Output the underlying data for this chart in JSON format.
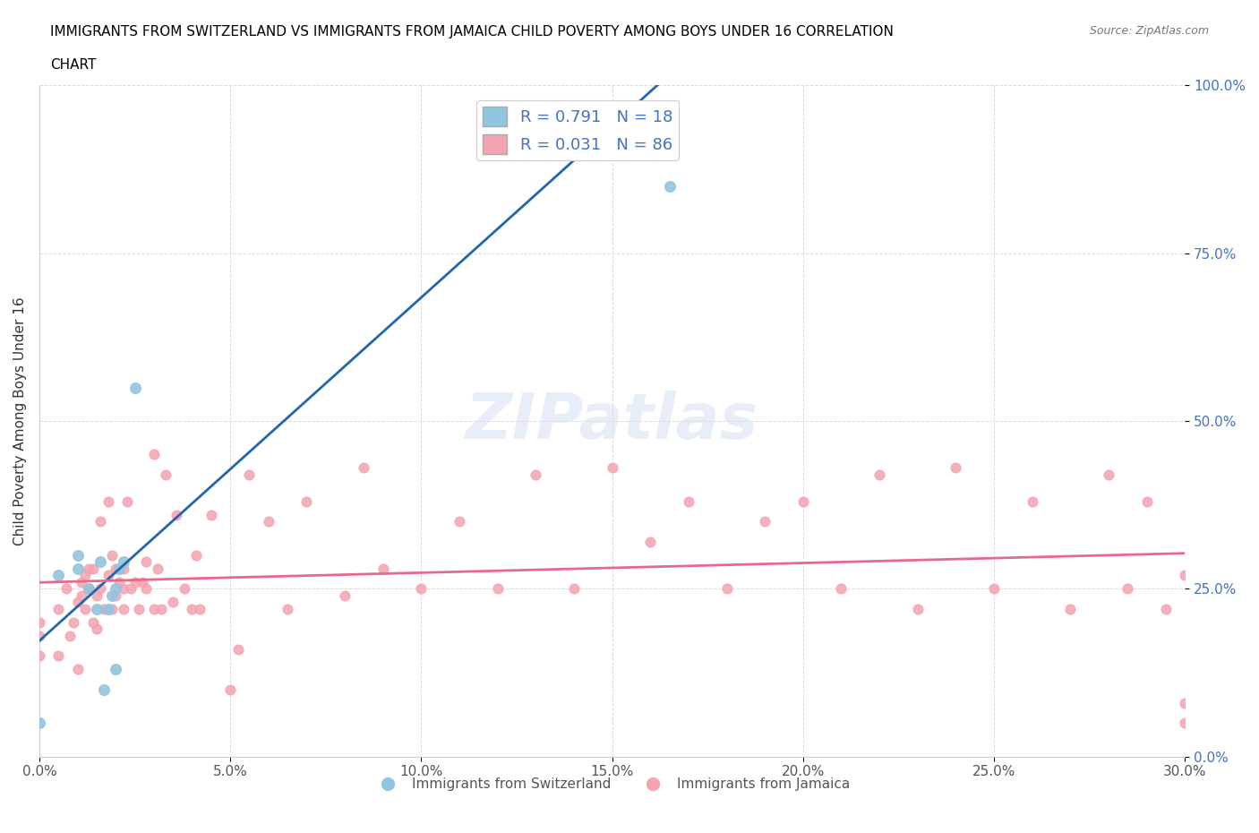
{
  "title_line1": "IMMIGRANTS FROM SWITZERLAND VS IMMIGRANTS FROM JAMAICA CHILD POVERTY AMONG BOYS UNDER 16 CORRELATION",
  "title_line2": "CHART",
  "source": "Source: ZipAtlas.com",
  "ylabel": "Child Poverty Among Boys Under 16",
  "xlabel_ticks": [
    "0.0%",
    "5.0%",
    "10.0%",
    "15.0%",
    "20.0%",
    "25.0%",
    "30.0%"
  ],
  "ylabel_ticks": [
    "0.0%",
    "25.0%",
    "50.0%",
    "75.0%",
    "100.0%"
  ],
  "xlim": [
    0.0,
    0.3
  ],
  "ylim": [
    0.0,
    1.0
  ],
  "R_switzerland": 0.791,
  "N_switzerland": 18,
  "R_jamaica": 0.031,
  "N_jamaica": 86,
  "color_switzerland": "#92c5de",
  "color_jamaica": "#f4a4b0",
  "line_color_switzerland": "#2166ac",
  "line_color_jamaica": "#e8688a",
  "watermark": "ZIPatlas",
  "switzerland_scatter_x": [
    0.0,
    0.005,
    0.01,
    0.01,
    0.013,
    0.015,
    0.016,
    0.017,
    0.018,
    0.019,
    0.02,
    0.02,
    0.021,
    0.022,
    0.025,
    0.12,
    0.15,
    0.165
  ],
  "switzerland_scatter_y": [
    0.05,
    0.27,
    0.28,
    0.3,
    0.25,
    0.22,
    0.29,
    0.1,
    0.22,
    0.24,
    0.13,
    0.25,
    0.28,
    0.29,
    0.55,
    0.97,
    0.97,
    0.85
  ],
  "jamaica_scatter_x": [
    0.0,
    0.0,
    0.0,
    0.005,
    0.005,
    0.007,
    0.008,
    0.009,
    0.01,
    0.01,
    0.011,
    0.011,
    0.012,
    0.012,
    0.013,
    0.013,
    0.014,
    0.014,
    0.015,
    0.015,
    0.016,
    0.016,
    0.017,
    0.018,
    0.018,
    0.019,
    0.019,
    0.02,
    0.02,
    0.021,
    0.022,
    0.022,
    0.022,
    0.023,
    0.024,
    0.025,
    0.026,
    0.027,
    0.028,
    0.028,
    0.03,
    0.03,
    0.031,
    0.032,
    0.033,
    0.035,
    0.036,
    0.038,
    0.04,
    0.041,
    0.042,
    0.045,
    0.05,
    0.052,
    0.055,
    0.06,
    0.065,
    0.07,
    0.08,
    0.085,
    0.09,
    0.1,
    0.11,
    0.12,
    0.13,
    0.14,
    0.15,
    0.16,
    0.17,
    0.18,
    0.19,
    0.2,
    0.21,
    0.22,
    0.23,
    0.24,
    0.25,
    0.26,
    0.27,
    0.28,
    0.285,
    0.29,
    0.295,
    0.3,
    0.3,
    0.3
  ],
  "jamaica_scatter_y": [
    0.15,
    0.18,
    0.2,
    0.15,
    0.22,
    0.25,
    0.18,
    0.2,
    0.13,
    0.23,
    0.24,
    0.26,
    0.22,
    0.27,
    0.25,
    0.28,
    0.2,
    0.28,
    0.19,
    0.24,
    0.25,
    0.35,
    0.22,
    0.27,
    0.38,
    0.22,
    0.3,
    0.24,
    0.28,
    0.26,
    0.22,
    0.25,
    0.28,
    0.38,
    0.25,
    0.26,
    0.22,
    0.26,
    0.25,
    0.29,
    0.22,
    0.45,
    0.28,
    0.22,
    0.42,
    0.23,
    0.36,
    0.25,
    0.22,
    0.3,
    0.22,
    0.36,
    0.1,
    0.16,
    0.42,
    0.35,
    0.22,
    0.38,
    0.24,
    0.43,
    0.28,
    0.25,
    0.35,
    0.25,
    0.42,
    0.25,
    0.43,
    0.32,
    0.38,
    0.25,
    0.35,
    0.38,
    0.25,
    0.42,
    0.22,
    0.43,
    0.25,
    0.38,
    0.22,
    0.42,
    0.25,
    0.38,
    0.22,
    0.27,
    0.05,
    0.08
  ]
}
